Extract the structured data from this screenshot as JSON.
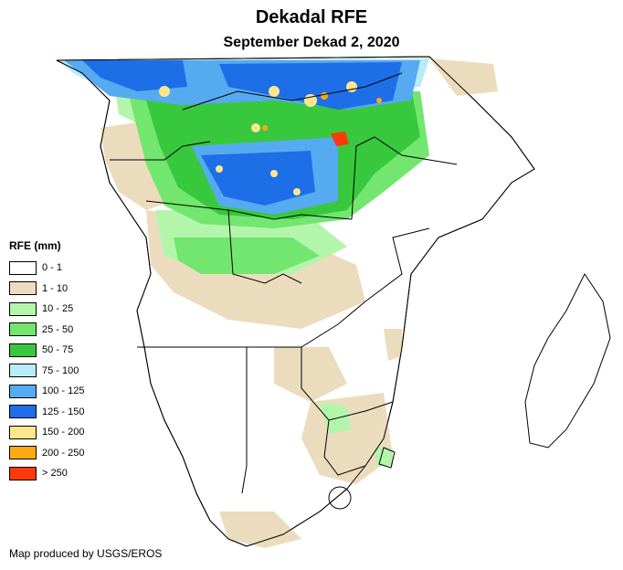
{
  "title": "Dekadal RFE",
  "subtitle": "September Dekad 2, 2020",
  "legend": {
    "title": "RFE (mm)",
    "items": [
      {
        "label": "0 - 1",
        "color": "#ffffff"
      },
      {
        "label": "1 - 10",
        "color": "#ecdcbe"
      },
      {
        "label": "10 - 25",
        "color": "#b4f5ac"
      },
      {
        "label": "25 - 50",
        "color": "#72e66e"
      },
      {
        "label": "50 - 75",
        "color": "#38c83d"
      },
      {
        "label": "75 - 100",
        "color": "#b8ecfa"
      },
      {
        "label": "100 - 125",
        "color": "#56aaf0"
      },
      {
        "label": "125 - 150",
        "color": "#1e6ee8"
      },
      {
        "label": "150 - 200",
        "color": "#ffe68c"
      },
      {
        "label": "200 - 250",
        "color": "#ffaa10"
      },
      {
        "label": "> 250",
        "color": "#ff3a0a"
      }
    ]
  },
  "credit": "Map produced by USGS/EROS"
}
